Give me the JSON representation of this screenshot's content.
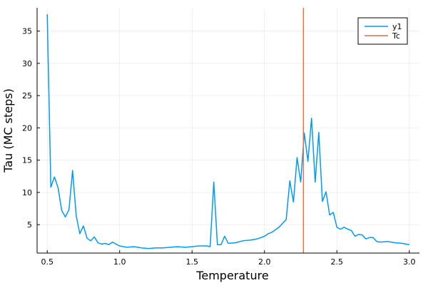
{
  "chart_data": {
    "type": "line",
    "title": "",
    "xlabel": "Temperature",
    "ylabel": "Tau (MC steps)",
    "xlim": [
      0.43,
      3.07
    ],
    "ylim": [
      0.6,
      38.6
    ],
    "x_ticks": [
      0.5,
      1.0,
      1.5,
      2.0,
      2.5,
      3.0
    ],
    "x_tick_labels": [
      "0.5",
      "1.0",
      "1.5",
      "2.0",
      "2.5",
      "3.0"
    ],
    "y_ticks": [
      5,
      10,
      15,
      20,
      25,
      30,
      35
    ],
    "y_tick_labels": [
      "5",
      "10",
      "15",
      "20",
      "25",
      "30",
      "35"
    ],
    "grid": true,
    "legend_position": "top-right",
    "series": [
      {
        "name": "y1",
        "color": "#009AF9",
        "x": [
          0.5,
          0.525,
          0.55,
          0.575,
          0.6,
          0.625,
          0.65,
          0.675,
          0.7,
          0.725,
          0.75,
          0.775,
          0.8,
          0.825,
          0.85,
          0.875,
          0.9,
          0.925,
          0.95,
          1.0,
          1.05,
          1.1,
          1.15,
          1.2,
          1.25,
          1.3,
          1.35,
          1.4,
          1.45,
          1.5,
          1.55,
          1.6,
          1.625,
          1.65,
          1.675,
          1.7,
          1.725,
          1.75,
          1.8,
          1.85,
          1.9,
          1.95,
          2.0,
          2.025,
          2.05,
          2.1,
          2.15,
          2.175,
          2.2,
          2.225,
          2.25,
          2.275,
          2.3,
          2.325,
          2.35,
          2.375,
          2.4,
          2.425,
          2.45,
          2.475,
          2.5,
          2.525,
          2.55,
          2.575,
          2.6,
          2.625,
          2.65,
          2.675,
          2.7,
          2.725,
          2.75,
          2.775,
          2.8,
          2.85,
          2.9,
          2.95,
          3.0
        ],
        "y": [
          37.6,
          10.8,
          12.4,
          10.7,
          7.2,
          6.2,
          7.3,
          13.4,
          6.4,
          3.6,
          4.8,
          2.9,
          2.5,
          3.1,
          2.2,
          2.0,
          2.1,
          1.9,
          2.3,
          1.7,
          1.5,
          1.6,
          1.4,
          1.3,
          1.4,
          1.4,
          1.5,
          1.6,
          1.5,
          1.6,
          1.7,
          1.7,
          1.6,
          11.6,
          1.9,
          1.9,
          3.2,
          2.1,
          2.2,
          2.5,
          2.6,
          2.8,
          3.2,
          3.6,
          3.8,
          4.6,
          5.8,
          11.8,
          8.5,
          15.4,
          11.6,
          19.2,
          14.8,
          21.5,
          11.6,
          19.3,
          8.6,
          10.1,
          6.5,
          6.9,
          4.6,
          4.3,
          4.6,
          4.3,
          4.1,
          3.2,
          3.5,
          3.4,
          2.8,
          3.0,
          3.0,
          2.4,
          2.3,
          2.4,
          2.2,
          2.1,
          1.9
        ]
      },
      {
        "name": "Tc",
        "color": "#E26F46",
        "vertical_line_x": 2.269
      }
    ]
  }
}
